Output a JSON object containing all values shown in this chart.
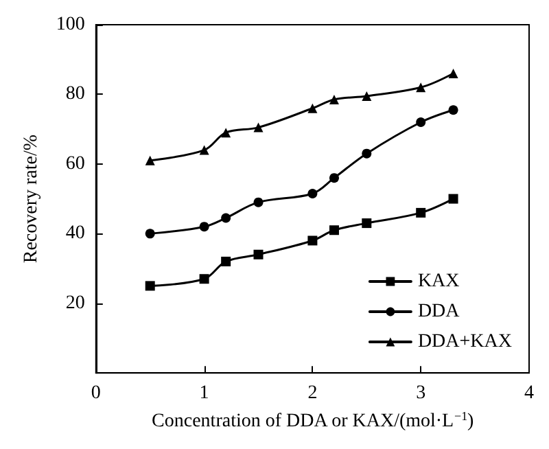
{
  "chart_data": {
    "type": "line",
    "xlabel": "Concentration of DDA or KAX/(mol·L$^{−1}$)",
    "ylabel": "Recovery rate/%",
    "x": [
      0.5,
      1,
      1.2,
      1.5,
      2,
      2.2,
      2.5,
      3,
      3.3
    ],
    "series": [
      {
        "name": "KAX",
        "color": "#000000",
        "marker": "square",
        "values": [
          25,
          27,
          32,
          34,
          38,
          41,
          43,
          46,
          50
        ]
      },
      {
        "name": "DDA",
        "color": "#000000",
        "marker": "circle",
        "values": [
          40,
          42,
          44.5,
          49,
          51.5,
          56,
          63,
          72,
          75.5
        ]
      },
      {
        "name": "DDA+KAX",
        "color": "#000000",
        "marker": "triangle",
        "values": [
          61,
          64,
          69,
          70.5,
          76,
          78.5,
          79.5,
          82,
          86
        ]
      }
    ],
    "xlim": [
      0,
      4
    ],
    "xticks": [
      0,
      1,
      2,
      3,
      4
    ],
    "ylim": [
      0,
      100
    ],
    "yticks": [
      {
        "value": 0,
        "label": null
      },
      20,
      40,
      60,
      80,
      100
    ],
    "grid": false,
    "legend": "bottom right",
    "line_style": "solid"
  }
}
